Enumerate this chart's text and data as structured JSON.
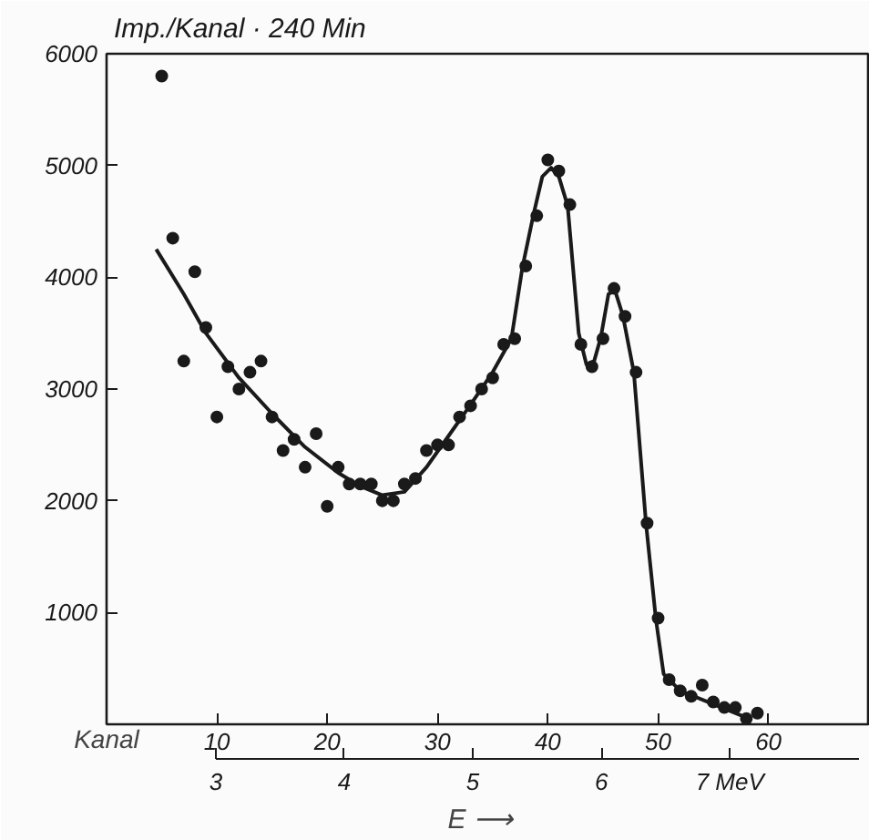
{
  "chart_data": {
    "type": "scatter",
    "ylabel": "Imp./Kanal · 240 Min",
    "xlabel": "Kanal",
    "x2label": "E   ⟶",
    "xlim": [
      0,
      69.2
    ],
    "xticks": [
      10,
      20,
      30,
      40,
      50,
      60
    ],
    "ylim": [
      0,
      6000
    ],
    "yticks": [
      1000,
      2000,
      3000,
      4000,
      5000,
      6000
    ],
    "x2lim": [
      2.15,
      8.09
    ],
    "x2ticks": [
      3,
      4,
      5,
      6,
      {
        "value": 7,
        "label": "7 MeV"
      }
    ],
    "marker": "circle",
    "series": [
      {
        "color": "#1a1a1a",
        "x": [
          5,
          6,
          7,
          8,
          9,
          10,
          11,
          12,
          13,
          14,
          15,
          16,
          17,
          18,
          19,
          20,
          21,
          22,
          23,
          24,
          25,
          26,
          27,
          28,
          29,
          30,
          31,
          32,
          33,
          34,
          35,
          36,
          37,
          38,
          39,
          40,
          41,
          42,
          43,
          44,
          45,
          46,
          47,
          48,
          49,
          50,
          51,
          52,
          53,
          54,
          55,
          56,
          57,
          58,
          59
        ],
        "values": [
          5800,
          4350,
          3250,
          4050,
          3550,
          2750,
          3200,
          3000,
          3150,
          3250,
          2750,
          2450,
          2550,
          2300,
          2600,
          1950,
          2300,
          2150,
          2150,
          2150,
          2000,
          2000,
          2150,
          2200,
          2450,
          2500,
          2500,
          2750,
          2850,
          3000,
          3100,
          3400,
          3450,
          4100,
          4550,
          5050,
          4950,
          4650,
          3400,
          3200,
          3450,
          3900,
          3650,
          3150,
          1800,
          950,
          400,
          300,
          250,
          350,
          200,
          150,
          150,
          50,
          100
        ]
      },
      {
        "type": "line",
        "color": "#1a1a1a",
        "line_style": "solid",
        "marker": "none",
        "x": [
          4.5,
          7,
          9,
          12,
          15,
          18,
          21,
          23,
          25,
          27,
          29,
          31,
          33,
          35,
          36.7,
          37.7,
          38.7,
          39.5,
          40.3,
          41,
          41.8,
          42.8,
          43.5,
          44.2,
          44.8,
          45.5,
          46.1,
          46.8,
          47.8,
          48.9,
          49.8,
          50.5,
          52,
          55,
          58
        ],
        "values": [
          4250,
          3850,
          3500,
          3100,
          2780,
          2480,
          2250,
          2130,
          2050,
          2080,
          2300,
          2580,
          2860,
          3150,
          3450,
          4090,
          4560,
          4900,
          4980,
          4900,
          4640,
          3500,
          3220,
          3250,
          3460,
          3850,
          3880,
          3660,
          3150,
          1800,
          940,
          450,
          300,
          180,
          60
        ]
      }
    ]
  }
}
